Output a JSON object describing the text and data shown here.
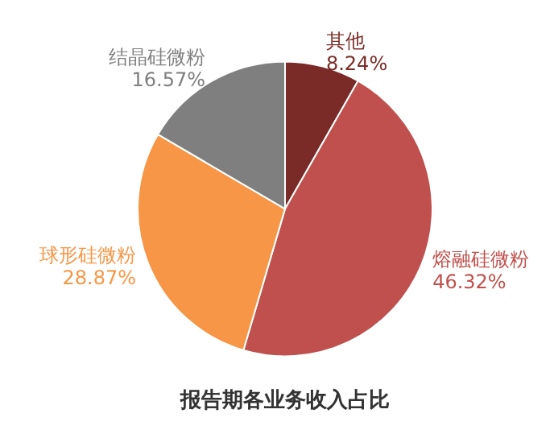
{
  "chart_data": {
    "type": "pie",
    "title": "报告期各业务收入占比",
    "categories": [
      "其他",
      "熔融硅微粉",
      "球形硅微粉",
      "结晶硅微粉"
    ],
    "values": [
      8.24,
      46.32,
      28.87,
      16.57
    ],
    "value_labels": [
      "8.24%",
      "46.32%",
      "28.87%",
      "16.57%"
    ],
    "colors": [
      "#7b2b27",
      "#c0504d",
      "#f79646",
      "#7f7f7f"
    ],
    "legend": false
  }
}
